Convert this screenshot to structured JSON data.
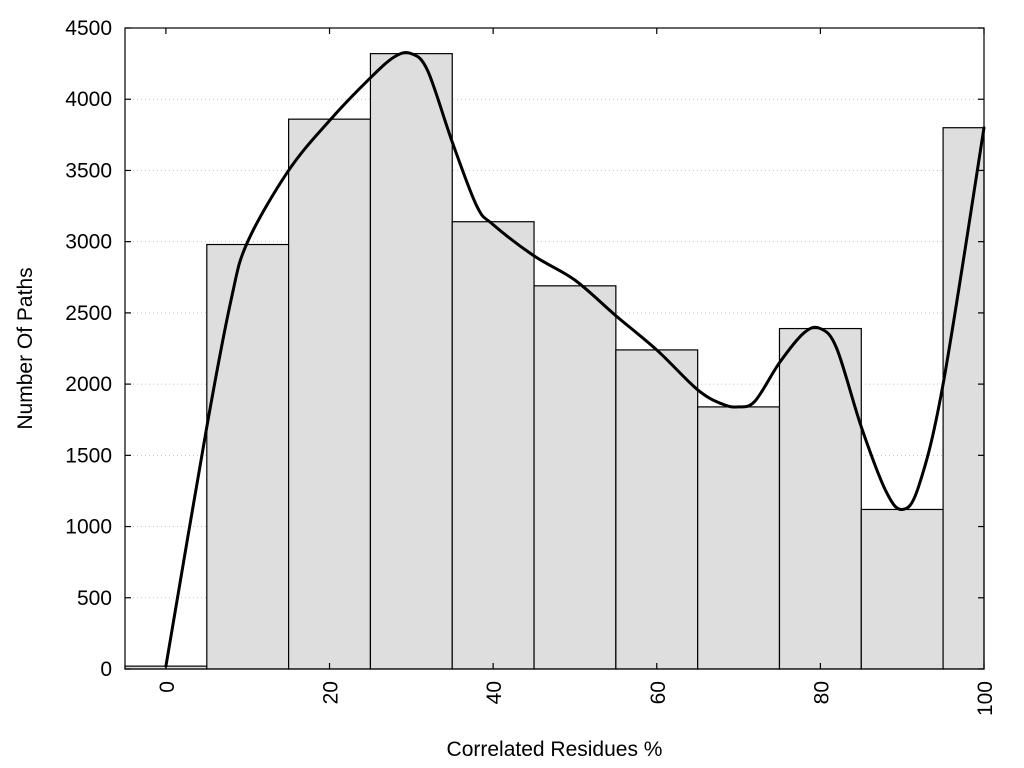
{
  "chart_data": {
    "type": "bar",
    "title": "",
    "xlabel": "Correlated Residues %",
    "ylabel": "Number Of Paths",
    "xlim": [
      -5,
      100
    ],
    "ylim": [
      0,
      4500
    ],
    "bar_width": 10,
    "grid": true,
    "x_ticks": [
      0,
      20,
      40,
      60,
      80,
      100
    ],
    "y_ticks": [
      0,
      500,
      1000,
      1500,
      2000,
      2500,
      3000,
      3500,
      4000,
      4500
    ],
    "x_tick_labels": [
      "0",
      "20",
      "40",
      "60",
      "80",
      "100"
    ],
    "y_tick_labels": [
      "0",
      "500",
      "1000",
      "1500",
      "2000",
      "2500",
      "3000",
      "3500",
      "4000",
      "4500"
    ],
    "bars": [
      {
        "x": 0,
        "value": 20
      },
      {
        "x": 10,
        "value": 2980
      },
      {
        "x": 20,
        "value": 3860
      },
      {
        "x": 30,
        "value": 4320
      },
      {
        "x": 40,
        "value": 3140
      },
      {
        "x": 50,
        "value": 2690
      },
      {
        "x": 60,
        "value": 2240
      },
      {
        "x": 70,
        "value": 1840
      },
      {
        "x": 80,
        "value": 2390
      },
      {
        "x": 90,
        "value": 1120
      },
      {
        "x": 100,
        "value": 3800
      }
    ],
    "curve": {
      "type": "line",
      "x": [
        0,
        5,
        8,
        10,
        15,
        20,
        25,
        28,
        30,
        32,
        35,
        38,
        40,
        45,
        50,
        55,
        60,
        65,
        68,
        70,
        72,
        75,
        78,
        80,
        82,
        85,
        88,
        90,
        92,
        95,
        100
      ],
      "y": [
        20,
        1700,
        2600,
        3000,
        3500,
        3850,
        4150,
        4300,
        4320,
        4200,
        3700,
        3250,
        3120,
        2900,
        2730,
        2480,
        2240,
        1960,
        1860,
        1840,
        1880,
        2150,
        2360,
        2390,
        2250,
        1700,
        1250,
        1120,
        1280,
        2000,
        3800
      ]
    }
  }
}
